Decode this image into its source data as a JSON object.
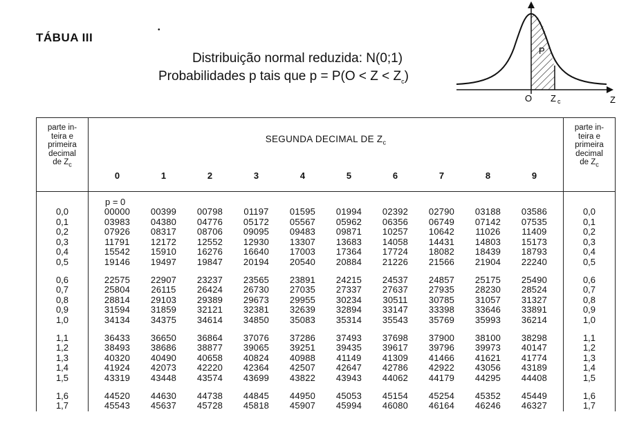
{
  "doc": {
    "title": "TÁBUA III",
    "heading_line1": "Distribuição normal reduzida: N(0;1)",
    "heading_line2": "Probabilidades p tais que p = P(O < Z < Z",
    "heading_line2_sub": "c",
    "heading_line2_end": ")"
  },
  "figure": {
    "p_label": "P",
    "origin_label": "O",
    "zc_label": "Z",
    "zc_sub": "c",
    "axis_label": "Z"
  },
  "table": {
    "side_header_lines": [
      "parte in-",
      "teira e",
      "primeira",
      "decimal",
      "de Z"
    ],
    "side_header_sub": "c",
    "center_header": "SEGUNDA DECIMAL DE Z",
    "center_header_sub": "c",
    "columns": [
      "0",
      "1",
      "2",
      "3",
      "4",
      "5",
      "6",
      "7",
      "8",
      "9"
    ],
    "p_zero": "p = 0",
    "groups": [
      [
        {
          "z": "0,0",
          "v": [
            "00000",
            "00399",
            "00798",
            "01197",
            "01595",
            "01994",
            "02392",
            "02790",
            "03188",
            "03586"
          ]
        },
        {
          "z": "0,1",
          "v": [
            "03983",
            "04380",
            "04776",
            "05172",
            "05567",
            "05962",
            "06356",
            "06749",
            "07142",
            "07535"
          ]
        },
        {
          "z": "0,2",
          "v": [
            "07926",
            "08317",
            "08706",
            "09095",
            "09483",
            "09871",
            "10257",
            "10642",
            "11026",
            "11409"
          ]
        },
        {
          "z": "0,3",
          "v": [
            "11791",
            "12172",
            "12552",
            "12930",
            "13307",
            "13683",
            "14058",
            "14431",
            "14803",
            "15173"
          ]
        },
        {
          "z": "0,4",
          "v": [
            "15542",
            "15910",
            "16276",
            "16640",
            "17003",
            "17364",
            "17724",
            "18082",
            "18439",
            "18793"
          ]
        },
        {
          "z": "0,5",
          "v": [
            "19146",
            "19497",
            "19847",
            "20194",
            "20540",
            "20884",
            "21226",
            "21566",
            "21904",
            "22240"
          ]
        }
      ],
      [
        {
          "z": "0,6",
          "v": [
            "22575",
            "22907",
            "23237",
            "23565",
            "23891",
            "24215",
            "24537",
            "24857",
            "25175",
            "25490"
          ]
        },
        {
          "z": "0,7",
          "v": [
            "25804",
            "26115",
            "26424",
            "26730",
            "27035",
            "27337",
            "27637",
            "27935",
            "28230",
            "28524"
          ]
        },
        {
          "z": "0,8",
          "v": [
            "28814",
            "29103",
            "29389",
            "29673",
            "29955",
            "30234",
            "30511",
            "30785",
            "31057",
            "31327"
          ]
        },
        {
          "z": "0,9",
          "v": [
            "31594",
            "31859",
            "32121",
            "32381",
            "32639",
            "32894",
            "33147",
            "33398",
            "33646",
            "33891"
          ]
        },
        {
          "z": "1,0",
          "v": [
            "34134",
            "34375",
            "34614",
            "34850",
            "35083",
            "35314",
            "35543",
            "35769",
            "35993",
            "36214"
          ]
        }
      ],
      [
        {
          "z": "1,1",
          "v": [
            "36433",
            "36650",
            "36864",
            "37076",
            "37286",
            "37493",
            "37698",
            "37900",
            "38100",
            "38298"
          ]
        },
        {
          "z": "1,2",
          "v": [
            "38493",
            "38686",
            "38877",
            "39065",
            "39251",
            "39435",
            "39617",
            "39796",
            "39973",
            "40147"
          ]
        },
        {
          "z": "1,3",
          "v": [
            "40320",
            "40490",
            "40658",
            "40824",
            "40988",
            "41149",
            "41309",
            "41466",
            "41621",
            "41774"
          ]
        },
        {
          "z": "1,4",
          "v": [
            "41924",
            "42073",
            "42220",
            "42364",
            "42507",
            "42647",
            "42786",
            "42922",
            "43056",
            "43189"
          ]
        },
        {
          "z": "1,5",
          "v": [
            "43319",
            "43448",
            "43574",
            "43699",
            "43822",
            "43943",
            "44062",
            "44179",
            "44295",
            "44408"
          ]
        }
      ],
      [
        {
          "z": "1,6",
          "v": [
            "44520",
            "44630",
            "44738",
            "44845",
            "44950",
            "45053",
            "45154",
            "45254",
            "45352",
            "45449"
          ]
        },
        {
          "z": "1,7",
          "v": [
            "45543",
            "45637",
            "45728",
            "45818",
            "45907",
            "45994",
            "46080",
            "46164",
            "46246",
            "46327"
          ]
        }
      ]
    ]
  }
}
